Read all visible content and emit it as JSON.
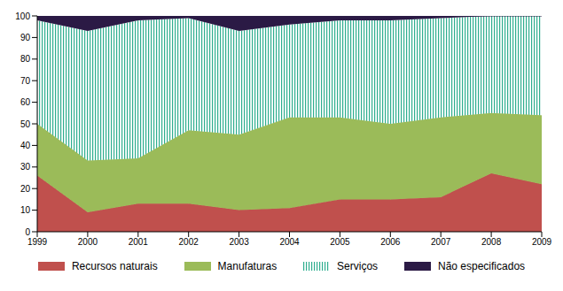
{
  "chart_data": {
    "type": "area",
    "stacked": true,
    "grid": false,
    "x": [
      1999,
      2000,
      2001,
      2002,
      2003,
      2004,
      2005,
      2006,
      2007,
      2008,
      2009
    ],
    "xlim": [
      1999,
      2009
    ],
    "xticks": [
      1999,
      2000,
      2001,
      2002,
      2003,
      2004,
      2005,
      2006,
      2007,
      2008,
      2009
    ],
    "ylim": [
      0,
      100
    ],
    "yticks": [
      0,
      10,
      20,
      30,
      40,
      50,
      60,
      70,
      80,
      90,
      100
    ],
    "series": [
      {
        "name": "Recursos naturais",
        "color": "#c0504d",
        "values": [
          26,
          9,
          13,
          13,
          10,
          11,
          15,
          15,
          16,
          27,
          22
        ]
      },
      {
        "name": "Manufaturas",
        "color": "#9bbb59",
        "values": [
          24,
          24,
          21,
          34,
          35,
          42,
          38,
          35,
          37,
          28,
          32
        ]
      },
      {
        "name": "Serviços",
        "color": "#2fae8f",
        "values": [
          48,
          60,
          64,
          52,
          48,
          43,
          45,
          48,
          46,
          45,
          46
        ]
      },
      {
        "name": "Não especificados",
        "color": "#2b1a45",
        "values": [
          2,
          7,
          2,
          1,
          7,
          4,
          2,
          2,
          1,
          0,
          0
        ]
      }
    ]
  }
}
